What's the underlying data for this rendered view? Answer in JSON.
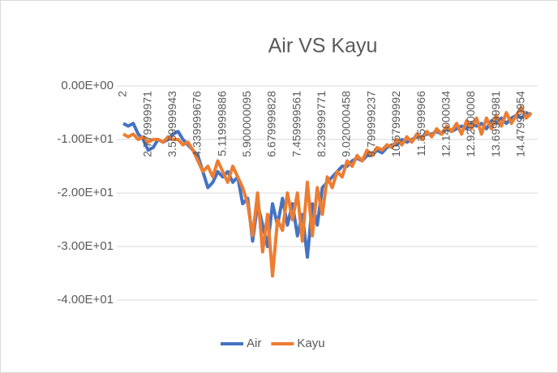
{
  "chart_data": {
    "type": "line",
    "title": "Air VS Kayu",
    "categories": [
      "2",
      null,
      null,
      null,
      null,
      "2.779999971",
      null,
      null,
      null,
      null,
      "3.559999943",
      null,
      null,
      null,
      null,
      "4.339999676",
      null,
      null,
      null,
      null,
      "5.119999886",
      null,
      null,
      null,
      null,
      "5.900000095",
      null,
      null,
      null,
      null,
      "6.679999828",
      null,
      null,
      null,
      null,
      "7.459999561",
      null,
      null,
      null,
      null,
      "8.239999771",
      null,
      null,
      null,
      null,
      "9.020000458",
      null,
      null,
      null,
      null,
      "9.799999237",
      null,
      null,
      null,
      null,
      "10.57999992",
      null,
      null,
      null,
      null,
      "11.35999966",
      null,
      null,
      null,
      null,
      "12.14000034",
      null,
      null,
      null,
      null,
      "12.92000008",
      null,
      null,
      null,
      null,
      "13.69999981",
      null,
      null,
      null,
      null,
      "14.47999954",
      null,
      null
    ],
    "series": [
      {
        "name": "Air",
        "color": "#4472c4",
        "values": [
          -7,
          -7.5,
          -7,
          -9,
          -10,
          -12,
          -11.5,
          -10,
          -10.5,
          -10,
          -9,
          -8.5,
          -10,
          -11,
          -12,
          -13,
          -16,
          -19,
          -18,
          -16,
          -17,
          -16,
          -18,
          -17,
          -22,
          -21,
          -29,
          -22,
          -26,
          -30,
          -22,
          -26,
          -21,
          -26,
          -22,
          -28,
          -24,
          -32,
          -22,
          -26,
          -19,
          -18,
          -17,
          -16,
          -15,
          -15,
          -14,
          -13.5,
          -14,
          -13,
          -13,
          -12,
          -12.5,
          -11.5,
          -11,
          -11,
          -10,
          -10.5,
          -10,
          -9.5,
          -9.5,
          -9,
          -9,
          -8.5,
          -9,
          -8,
          -8.5,
          -8,
          -7.5,
          -8,
          -7,
          -7.5,
          -7,
          -8,
          -6.5,
          -7,
          -6,
          -7,
          -6,
          -5.5,
          -6,
          -5,
          -5.5
        ]
      },
      {
        "name": "Kayu",
        "color": "#ed7d31",
        "values": [
          -9,
          -9.5,
          -9,
          -10,
          -9.5,
          -10.5,
          -10,
          -10,
          -10.5,
          -9.5,
          -10,
          -10,
          -11,
          -10.5,
          -12,
          -14,
          -16,
          -15,
          -17,
          -14,
          -16,
          -18,
          -15,
          -17,
          -19,
          -22,
          -28,
          -20,
          -31,
          -24,
          -35.5,
          -25,
          -27,
          -20,
          -25,
          -20,
          -29,
          -18,
          -28,
          -19,
          -24,
          -17,
          -19,
          -16,
          -17,
          -14,
          -15,
          -13,
          -14,
          -12,
          -13,
          -11.5,
          -12,
          -11,
          -11.5,
          -10,
          -11,
          -9.5,
          -10.5,
          -9,
          -10,
          -8.5,
          -9.5,
          -8,
          -9,
          -7.5,
          -8.5,
          -7,
          -9,
          -6.5,
          -8,
          -6,
          -9,
          -6,
          -8,
          -5.5,
          -7.5,
          -5,
          -7,
          -5.5,
          -4,
          -6,
          -5
        ]
      }
    ],
    "ylim": [
      -40,
      0
    ],
    "yticks": [
      {
        "value": 0,
        "label": "0.00E+00"
      },
      {
        "value": -10,
        "label": "-1.00E+01"
      },
      {
        "value": -20,
        "label": "-2.00E+01"
      },
      {
        "value": -30,
        "label": "-3.00E+01"
      },
      {
        "value": -40,
        "label": "-4.00E+01"
      }
    ],
    "grid": true,
    "legend": "bottom"
  }
}
